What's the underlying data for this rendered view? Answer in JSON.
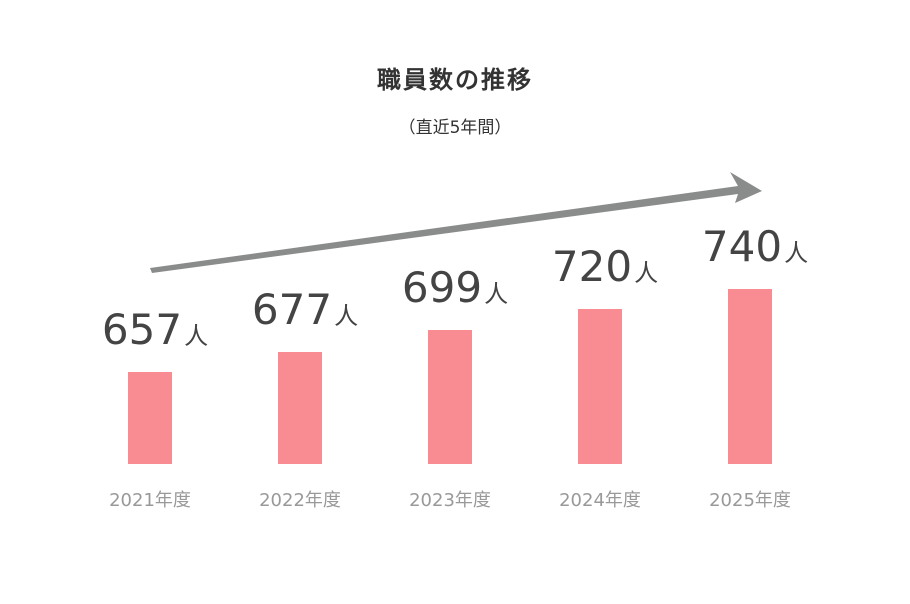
{
  "chart_data": {
    "type": "bar",
    "title": "職員数の推移",
    "subtitle": "（直近5年間）",
    "categories": [
      "2021年度",
      "2022年度",
      "2023年度",
      "2024年度",
      "2025年度"
    ],
    "values": [
      657,
      677,
      699,
      720,
      740
    ],
    "value_labels": [
      "657人",
      "677人",
      "699人",
      "720人",
      "740人"
    ],
    "color": "#f98b93",
    "ylim": [
      565,
      765
    ]
  }
}
